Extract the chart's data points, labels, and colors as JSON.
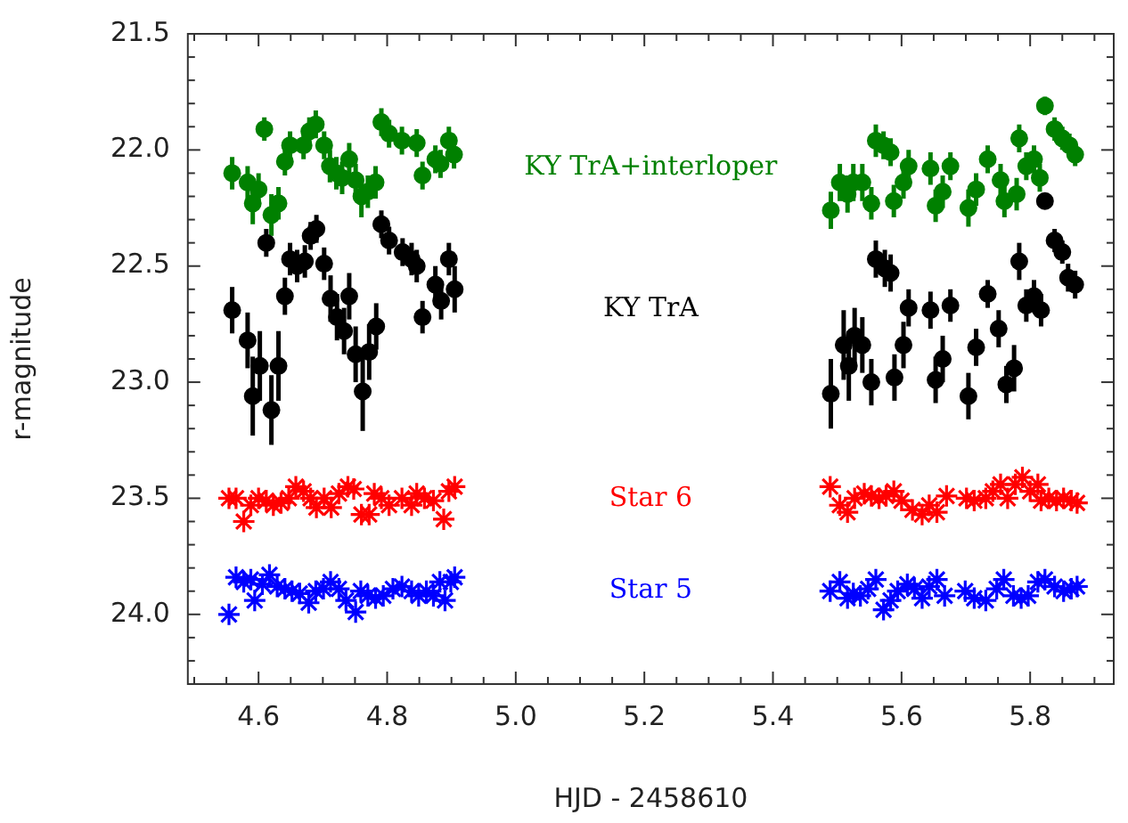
{
  "chart_data": {
    "type": "scatter",
    "xlabel": "HJD - 2458610",
    "ylabel": "r-magnitude",
    "xlim": [
      4.49,
      5.93
    ],
    "xticks": [
      4.6,
      4.8,
      {
        "value": 5,
        "label": "5.0"
      },
      5.2,
      5.4,
      5.6,
      5.8
    ],
    "ylim": [
      24.3,
      21.5
    ],
    "yticks": [
      21.5,
      {
        "value": 22,
        "label": "22.0"
      },
      22.5,
      {
        "value": 23,
        "label": "23.0"
      },
      23.5,
      {
        "value": 24,
        "label": "24.0"
      }
    ],
    "grid": false,
    "legend": false,
    "series": [
      {
        "name": "KY TrA+interloper",
        "color": "#008000",
        "marker": "circle",
        "x": [
          4.559,
          4.583,
          4.591,
          4.6,
          4.609,
          4.62,
          4.631,
          4.641,
          4.649,
          4.67,
          4.679,
          4.689,
          4.702,
          4.711,
          4.721,
          4.73,
          4.741,
          4.751,
          4.76,
          4.77,
          4.782,
          4.791,
          4.803,
          4.823,
          4.846,
          4.855,
          4.875,
          4.883,
          4.896,
          4.904,
          5.49,
          5.504,
          5.516,
          5.525,
          5.539,
          5.553,
          5.56,
          5.572,
          5.583,
          5.588,
          5.603,
          5.611,
          5.645,
          5.653,
          5.664,
          5.676,
          5.704,
          5.716,
          5.734,
          5.754,
          5.76,
          5.779,
          5.783,
          5.794,
          5.806,
          5.815,
          5.823,
          5.838,
          5.85,
          5.861,
          5.87
        ],
        "values": [
          22.1,
          22.14,
          22.23,
          22.17,
          21.91,
          22.28,
          22.23,
          22.05,
          21.98,
          21.98,
          21.92,
          21.89,
          21.98,
          22.07,
          22.1,
          22.12,
          22.04,
          22.13,
          22.2,
          22.18,
          22.14,
          21.88,
          21.93,
          21.96,
          21.97,
          22.11,
          22.04,
          22.06,
          21.96,
          22.02,
          22.26,
          22.14,
          22.19,
          22.14,
          22.14,
          22.23,
          21.96,
          21.98,
          22.01,
          22.22,
          22.14,
          22.07,
          22.08,
          22.24,
          22.18,
          22.07,
          22.25,
          22.17,
          22.04,
          22.13,
          22.22,
          22.19,
          21.95,
          22.07,
          22.04,
          22.12,
          21.81,
          21.91,
          21.95,
          21.98,
          22.02
        ],
        "errors": [
          0.07,
          0.07,
          0.09,
          0.07,
          0.05,
          0.09,
          0.07,
          0.06,
          0.06,
          0.06,
          0.06,
          0.06,
          0.06,
          0.07,
          0.07,
          0.07,
          0.07,
          0.07,
          0.09,
          0.07,
          0.07,
          0.06,
          0.06,
          0.06,
          0.06,
          0.06,
          0.06,
          0.06,
          0.06,
          0.06,
          0.08,
          0.08,
          0.08,
          0.08,
          0.08,
          0.07,
          0.07,
          0.06,
          0.06,
          0.07,
          0.07,
          0.07,
          0.07,
          0.07,
          0.07,
          0.06,
          0.08,
          0.07,
          0.06,
          0.07,
          0.07,
          0.07,
          0.06,
          0.06,
          0.06,
          0.06,
          0.04,
          0.05,
          0.05,
          0.05,
          0.05
        ]
      },
      {
        "name": "KY TrA",
        "color": "#000000",
        "marker": "circle",
        "x": [
          4.559,
          4.583,
          4.591,
          4.602,
          4.612,
          4.62,
          4.631,
          4.641,
          4.649,
          4.66,
          4.672,
          4.681,
          4.69,
          4.702,
          4.712,
          4.722,
          4.733,
          4.741,
          4.751,
          4.762,
          4.772,
          4.783,
          4.791,
          4.803,
          4.824,
          4.838,
          4.846,
          4.855,
          4.875,
          4.884,
          4.896,
          4.905,
          5.49,
          5.51,
          5.518,
          5.527,
          5.539,
          5.553,
          5.56,
          5.574,
          5.583,
          5.589,
          5.603,
          5.611,
          5.645,
          5.653,
          5.664,
          5.676,
          5.704,
          5.716,
          5.734,
          5.751,
          5.763,
          5.775,
          5.783,
          5.794,
          5.806,
          5.817,
          5.823,
          5.838,
          5.85,
          5.859,
          5.87
        ],
        "values": [
          22.69,
          22.82,
          23.06,
          22.93,
          22.4,
          23.12,
          22.93,
          22.63,
          22.47,
          22.5,
          22.48,
          22.37,
          22.34,
          22.49,
          22.64,
          22.72,
          22.78,
          22.63,
          22.88,
          23.04,
          22.87,
          22.76,
          22.32,
          22.39,
          22.44,
          22.47,
          22.5,
          22.72,
          22.58,
          22.65,
          22.47,
          22.6,
          23.05,
          22.84,
          22.93,
          22.8,
          22.84,
          23.0,
          22.47,
          22.51,
          22.53,
          22.98,
          22.84,
          22.68,
          22.69,
          22.99,
          22.9,
          22.67,
          23.06,
          22.85,
          22.62,
          22.77,
          23.01,
          22.94,
          22.48,
          22.67,
          22.63,
          22.69,
          22.22,
          22.39,
          22.44,
          22.55,
          22.58
        ],
        "errors": [
          0.1,
          0.12,
          0.17,
          0.15,
          0.06,
          0.15,
          0.15,
          0.08,
          0.07,
          0.07,
          0.07,
          0.06,
          0.06,
          0.07,
          0.1,
          0.1,
          0.1,
          0.1,
          0.12,
          0.17,
          0.12,
          0.1,
          0.06,
          0.06,
          0.06,
          0.07,
          0.07,
          0.07,
          0.08,
          0.08,
          0.07,
          0.1,
          0.15,
          0.15,
          0.15,
          0.12,
          0.12,
          0.1,
          0.08,
          0.08,
          0.08,
          0.1,
          0.1,
          0.08,
          0.08,
          0.1,
          0.1,
          0.07,
          0.1,
          0.08,
          0.06,
          0.08,
          0.08,
          0.1,
          0.08,
          0.07,
          0.07,
          0.07,
          0.03,
          0.05,
          0.05,
          0.06,
          0.06
        ]
      },
      {
        "name": "Star 6",
        "color": "#ff0000",
        "marker": "cross",
        "x": [
          4.554,
          4.565,
          4.577,
          4.588,
          4.6,
          4.612,
          4.623,
          4.635,
          4.647,
          4.658,
          4.67,
          4.681,
          4.69,
          4.702,
          4.713,
          4.725,
          4.739,
          4.748,
          4.76,
          4.772,
          4.78,
          4.791,
          4.803,
          4.823,
          4.838,
          4.846,
          4.858,
          4.872,
          4.888,
          4.896,
          4.905,
          5.489,
          5.504,
          5.516,
          5.527,
          5.542,
          5.553,
          5.565,
          5.576,
          5.588,
          5.6,
          5.617,
          5.632,
          5.643,
          5.655,
          5.67,
          5.701,
          5.713,
          5.731,
          5.742,
          5.754,
          5.765,
          5.777,
          5.788,
          5.8,
          5.812,
          5.817,
          5.829,
          5.841,
          5.852,
          5.864,
          5.873
        ],
        "values": [
          23.5,
          23.5,
          23.6,
          23.53,
          23.5,
          23.51,
          23.53,
          23.52,
          23.5,
          23.45,
          23.47,
          23.5,
          23.54,
          23.5,
          23.54,
          23.48,
          23.45,
          23.46,
          23.57,
          23.57,
          23.48,
          23.5,
          23.53,
          23.5,
          23.53,
          23.48,
          23.5,
          23.51,
          23.59,
          23.47,
          23.45,
          23.45,
          23.53,
          23.56,
          23.5,
          23.48,
          23.49,
          23.5,
          23.49,
          23.47,
          23.51,
          23.55,
          23.57,
          23.53,
          23.56,
          23.49,
          23.5,
          23.51,
          23.5,
          23.47,
          23.44,
          23.5,
          23.44,
          23.41,
          23.47,
          23.44,
          23.51,
          23.5,
          23.51,
          23.5,
          23.51,
          23.52
        ]
      },
      {
        "name": "Star 5",
        "color": "#0000ff",
        "marker": "cross",
        "x": [
          4.554,
          4.565,
          4.577,
          4.588,
          4.594,
          4.606,
          4.617,
          4.629,
          4.641,
          4.652,
          4.664,
          4.678,
          4.689,
          4.701,
          4.712,
          4.725,
          4.736,
          4.751,
          4.759,
          4.77,
          4.782,
          4.794,
          4.809,
          4.823,
          4.838,
          4.849,
          4.861,
          4.872,
          4.882,
          4.89,
          4.899,
          4.905,
          5.489,
          5.504,
          5.516,
          5.525,
          5.536,
          5.548,
          5.56,
          5.572,
          5.583,
          5.594,
          5.609,
          5.62,
          5.632,
          5.643,
          5.655,
          5.667,
          5.699,
          5.713,
          5.731,
          5.748,
          5.759,
          5.774,
          5.786,
          5.797,
          5.812,
          5.823,
          5.838,
          5.852,
          5.864,
          5.873
        ],
        "values": [
          24.0,
          23.84,
          23.86,
          23.85,
          23.94,
          23.87,
          23.83,
          23.88,
          23.89,
          23.9,
          23.91,
          23.95,
          23.9,
          23.89,
          23.86,
          23.89,
          23.94,
          23.99,
          23.9,
          23.92,
          23.93,
          23.92,
          23.89,
          23.88,
          23.9,
          23.92,
          23.9,
          23.92,
          23.86,
          23.94,
          23.86,
          23.84,
          23.9,
          23.86,
          23.93,
          23.91,
          23.92,
          23.89,
          23.85,
          23.98,
          23.94,
          23.9,
          23.87,
          23.89,
          23.93,
          23.88,
          23.85,
          23.92,
          23.9,
          23.93,
          23.94,
          23.89,
          23.85,
          23.92,
          23.93,
          23.92,
          23.86,
          23.85,
          23.88,
          23.9,
          23.89,
          23.88
        ]
      }
    ]
  }
}
